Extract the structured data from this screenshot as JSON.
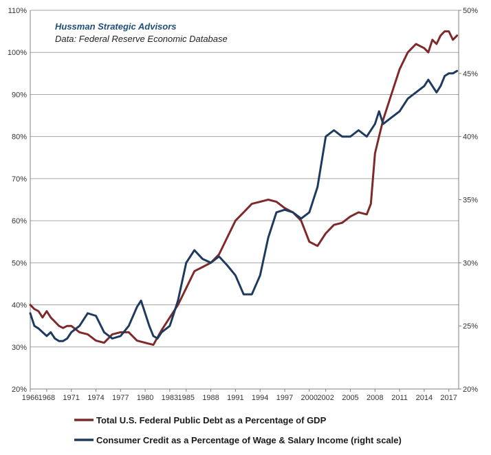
{
  "chart_data": {
    "type": "line",
    "title": "",
    "annotations": [
      "Hussman Strategic Advisors",
      "Data: Federal Reserve Economic Database"
    ],
    "x_ticks": [
      "1966",
      "1968",
      "1971",
      "1974",
      "1977",
      "1980",
      "1983",
      "1985",
      "1988",
      "1991",
      "1994",
      "1997",
      "2000",
      "2002",
      "2005",
      "2008",
      "2011",
      "2014",
      "2017"
    ],
    "xlim": [
      1966,
      2018.2
    ],
    "y_left": {
      "ticks": [
        "20%",
        "30%",
        "40%",
        "50%",
        "60%",
        "70%",
        "80%",
        "90%",
        "100%",
        "110%"
      ],
      "lim": [
        20,
        110
      ]
    },
    "y_right": {
      "ticks": [
        "20%",
        "25%",
        "30%",
        "35%",
        "40%",
        "45%",
        "50%"
      ],
      "lim": [
        20,
        50
      ]
    },
    "grid": "horizontal",
    "legend": "bottom",
    "colors": {
      "debt": "#7f2a2a",
      "credit": "#1f3a5f",
      "grid": "#a6a6a6",
      "axis": "#7f7f7f",
      "annotation": "#1f4e79"
    },
    "series": [
      {
        "name": "Total U.S. Federal Public Debt as a Percentage of GDP",
        "axis": "left",
        "color": "#7f2a2a",
        "x": [
          1966,
          1966.5,
          1967,
          1967.5,
          1968,
          1968.5,
          1969,
          1969.5,
          1970,
          1970.5,
          1971,
          1972,
          1973,
          1974,
          1975,
          1976,
          1977,
          1978,
          1979,
          1980,
          1981,
          1982,
          1983,
          1984,
          1985,
          1986,
          1987,
          1988,
          1989,
          1990,
          1991,
          1992,
          1993,
          1994,
          1995,
          1996,
          1997,
          1998,
          1999,
          2000,
          2001,
          2002,
          2003,
          2004,
          2005,
          2006,
          2007,
          2007.5,
          2008,
          2008.5,
          2009,
          2010,
          2011,
          2012,
          2013,
          2014,
          2014.5,
          2015,
          2015.5,
          2016,
          2016.5,
          2017,
          2017.5,
          2018
        ],
        "y": [
          40,
          39,
          38.5,
          37,
          38.5,
          37,
          36,
          35,
          34.5,
          35,
          35,
          33.5,
          33,
          31.5,
          31,
          33,
          33.5,
          33.5,
          31.5,
          31,
          30.5,
          34,
          37,
          40,
          44,
          48,
          49,
          50,
          52,
          56,
          60,
          62,
          64,
          64.5,
          65,
          64.5,
          63,
          62,
          60,
          55,
          54,
          57,
          59,
          59.5,
          61,
          62,
          61.5,
          64,
          76,
          80,
          84,
          90,
          96,
          100,
          102,
          101,
          100,
          103,
          102,
          104,
          105,
          105,
          103,
          104
        ]
      },
      {
        "name": "Consumer Credit as a Percentage of Wage & Salary Income (right scale)",
        "axis": "right",
        "color": "#1f3a5f",
        "x": [
          1966,
          1966.5,
          1967,
          1967.5,
          1968,
          1968.5,
          1969,
          1969.5,
          1970,
          1970.5,
          1971,
          1972,
          1973,
          1974,
          1975,
          1976,
          1977,
          1978,
          1979,
          1979.5,
          1980,
          1980.5,
          1981,
          1981.5,
          1982,
          1983,
          1984,
          1985,
          1986,
          1987,
          1988,
          1989,
          1990,
          1991,
          1992,
          1993,
          1994,
          1995,
          1996,
          1997,
          1998,
          1999,
          2000,
          2001,
          2002,
          2003,
          2004,
          2005,
          2006,
          2007,
          2008,
          2008.5,
          2009,
          2010,
          2011,
          2012,
          2013,
          2014,
          2014.5,
          2015,
          2015.5,
          2016,
          2016.5,
          2017,
          2017.5,
          2018
        ],
        "y": [
          26,
          25,
          24.8,
          24.5,
          24.2,
          24.5,
          24,
          23.8,
          23.8,
          24,
          24.5,
          25,
          26,
          25.8,
          24.5,
          24,
          24.2,
          25,
          26.5,
          27,
          26,
          25,
          24.2,
          24,
          24.5,
          25,
          27,
          30,
          31,
          30.3,
          30,
          30.5,
          29.8,
          29,
          27.5,
          27.5,
          29,
          32,
          34,
          34.2,
          34,
          33.5,
          34,
          36,
          40,
          40.5,
          40,
          40,
          40.5,
          40,
          41,
          42,
          41,
          41.5,
          42,
          43,
          43.5,
          44,
          44.5,
          44,
          43.5,
          44,
          44.8,
          45,
          45,
          45.2
        ]
      }
    ]
  }
}
